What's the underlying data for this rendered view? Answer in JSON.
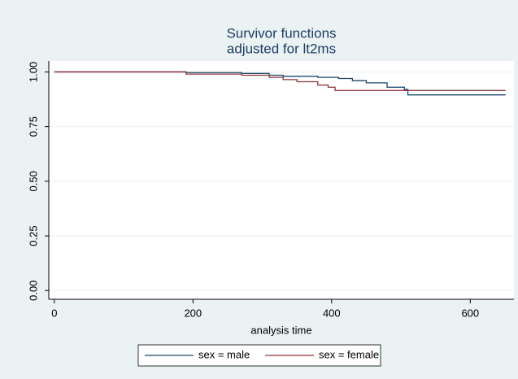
{
  "chart_data": {
    "type": "line",
    "step": true,
    "title": [
      "Survivor functions",
      "adjusted for lt2ms"
    ],
    "x_label": "analysis time",
    "xlim": [
      -8,
      663
    ],
    "xticks": [
      0,
      200,
      400,
      600
    ],
    "ylim": [
      -0.04,
      1.05
    ],
    "yticks": [
      {
        "value": 0,
        "label": "0.00"
      },
      {
        "value": 0.25,
        "label": "0.25"
      },
      {
        "value": 0.5,
        "label": "0.50"
      },
      {
        "value": 0.75,
        "label": "0.75"
      },
      {
        "value": 1,
        "label": "1.00"
      }
    ],
    "grid": true,
    "legend": "bottom",
    "series": [
      {
        "name": "sex = male",
        "color": "#1a476f",
        "x": [
          0,
          190,
          270,
          310,
          330,
          380,
          410,
          430,
          450,
          480,
          505,
          510,
          651
        ],
        "values": [
          1,
          0.997,
          0.993,
          0.985,
          0.98,
          0.975,
          0.97,
          0.96,
          0.95,
          0.93,
          0.92,
          0.895,
          0.895
        ]
      },
      {
        "name": "sex = female",
        "color": "#90353b",
        "x": [
          0,
          190,
          270,
          310,
          330,
          350,
          380,
          395,
          405,
          651
        ],
        "values": [
          1,
          0.99,
          0.985,
          0.975,
          0.965,
          0.955,
          0.94,
          0.93,
          0.915,
          0.915
        ]
      }
    ]
  }
}
